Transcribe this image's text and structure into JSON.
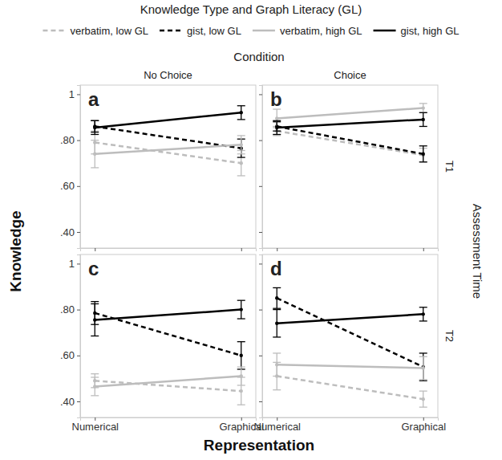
{
  "chart_data": {
    "type": "line",
    "legend_title": "Knowledge Type and Graph Literacy (GL)",
    "column_title": "Condition",
    "row_title": "Assessment Time",
    "columns": [
      "No Choice",
      "Choice"
    ],
    "rows": [
      "T1",
      "T2"
    ],
    "x_label": "Representation",
    "y_label": "Knowledge",
    "categories": [
      "Numerical",
      "Graphical"
    ],
    "ylim": [
      0.33,
      1.04
    ],
    "yticks": [
      {
        "value": 0.4,
        "label": ".40"
      },
      {
        "value": 0.6,
        "label": ".60"
      },
      {
        "value": 0.8,
        "label": ".80"
      },
      {
        "value": 1,
        "label": "1"
      }
    ],
    "grid": false,
    "legend": "top",
    "series": [
      {
        "name": "verbatim, low GL",
        "color": "#bdbdbd",
        "line_style": "dashed"
      },
      {
        "name": "gist, low GL",
        "color": "#000000",
        "line_style": "dashed"
      },
      {
        "name": "verbatim, high GL",
        "color": "#bdbdbd",
        "line_style": "solid"
      },
      {
        "name": "gist, high GL",
        "color": "#000000",
        "line_style": "solid"
      }
    ],
    "panels": [
      {
        "label": "a",
        "values": [
          [
            0.79,
            0.7
          ],
          [
            0.86,
            0.765
          ],
          [
            0.74,
            0.78
          ],
          [
            0.855,
            0.92
          ]
        ],
        "errors": [
          [
            0.05,
            0.055
          ],
          [
            0.025,
            0.04
          ],
          [
            0.06,
            0.04
          ],
          [
            0.03,
            0.03
          ]
        ]
      },
      {
        "label": "b",
        "values": [
          [
            0.84,
            0.735
          ],
          [
            0.86,
            0.74
          ],
          [
            0.895,
            0.94
          ],
          [
            0.855,
            0.89
          ]
        ],
        "errors": [
          [
            0.02,
            0.03
          ],
          [
            0.02,
            0.035
          ],
          [
            0.04,
            0.02
          ],
          [
            0.03,
            0.03
          ]
        ]
      },
      {
        "label": "c",
        "values": [
          [
            0.49,
            0.445
          ],
          [
            0.785,
            0.6
          ],
          [
            0.465,
            0.51
          ],
          [
            0.755,
            0.8
          ]
        ],
        "errors": [
          [
            0.03,
            0.06
          ],
          [
            0.05,
            0.06
          ],
          [
            0.04,
            0.04
          ],
          [
            0.07,
            0.04
          ]
        ]
      },
      {
        "label": "d",
        "values": [
          [
            0.51,
            0.41
          ],
          [
            0.85,
            0.55
          ],
          [
            0.56,
            0.545
          ],
          [
            0.74,
            0.78
          ]
        ],
        "errors": [
          [
            0.06,
            0.035
          ],
          [
            0.045,
            0.06
          ],
          [
            0.05,
            0.05
          ],
          [
            0.06,
            0.03
          ]
        ]
      }
    ]
  }
}
